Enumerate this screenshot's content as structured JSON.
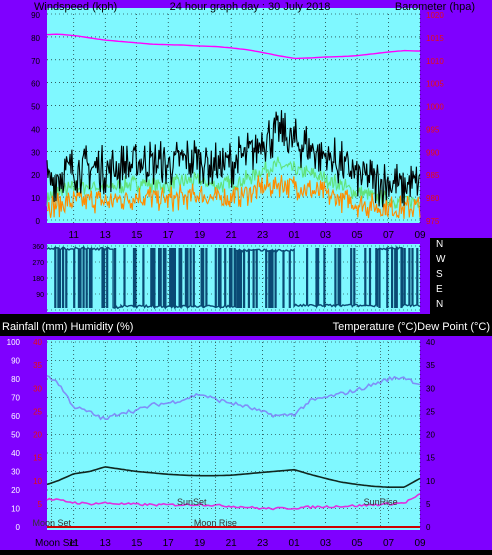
{
  "header": {
    "left": "Windspeed (kph)",
    "center": "24 hour graph day : 30 July 2018",
    "right": "Barometer (hpa)"
  },
  "mid_header": {
    "left": "Rainfall (mm)  Humidity (%)",
    "right": "Temperature (°C)Dew Point (°C)"
  },
  "colors": {
    "background": "#000000",
    "frame": "#7f00ff",
    "plot_bg": "#7ff8ff",
    "wind_speed": "#000000",
    "wind_gust_band": "#62e27a",
    "wind_avg": "#ff8c00",
    "barometer": "#ff00ff",
    "direction": "#0a4a74",
    "humidity": "#7f8ff8",
    "temperature": "#102820",
    "dew_point": "#e030e0",
    "rainfall": "#cc0000",
    "axis_red": "#e81010"
  },
  "chart_data": [
    {
      "type": "line",
      "title": "24 hour graph day : 30 July 2018",
      "ylabel": "Windspeed (kph)",
      "y2label": "Barometer (hpa)",
      "x_ticks": [
        "11",
        "13",
        "15",
        "17",
        "19",
        "21",
        "23",
        "01",
        "03",
        "05",
        "07",
        "09"
      ],
      "ylim": [
        0,
        90
      ],
      "y_ticks": [
        0,
        10,
        20,
        30,
        40,
        50,
        60,
        70,
        80,
        90
      ],
      "y2lim": [
        975,
        1020
      ],
      "y2_ticks": [
        975,
        980,
        985,
        990,
        995,
        1000,
        1005,
        1010,
        1015,
        1020
      ],
      "grid": true,
      "series": [
        {
          "key": "barometer",
          "axis": "y2",
          "x": [
            9.3,
            10,
            11,
            12,
            13,
            14,
            15,
            16,
            17,
            18,
            19,
            20,
            21,
            22,
            23,
            0,
            1,
            2,
            3,
            4,
            5,
            6,
            7,
            8,
            9
          ],
          "values": [
            1015.5,
            1015.6,
            1015.3,
            1014.8,
            1014.3,
            1014.0,
            1013.7,
            1013.4,
            1013.3,
            1013.2,
            1013.0,
            1012.9,
            1012.6,
            1012.2,
            1011.6,
            1010.9,
            1010.3,
            1010.4,
            1010.6,
            1010.7,
            1010.9,
            1011.3,
            1011.7,
            1012.0,
            1011.9
          ]
        },
        {
          "key": "wind_speed",
          "axis": "y",
          "noise": 11,
          "x": [
            9.3,
            10,
            11,
            12,
            13,
            14,
            15,
            16,
            17,
            18,
            19,
            20,
            21,
            22,
            23,
            0,
            1,
            2,
            3,
            4,
            5,
            6,
            7,
            8,
            9
          ],
          "values": [
            16,
            20,
            22,
            23,
            22,
            23,
            25,
            25,
            24,
            26,
            27,
            24,
            25,
            28,
            35,
            38,
            34,
            32,
            28,
            24,
            20,
            17,
            16,
            15,
            15
          ]
        },
        {
          "key": "wind_gust_band",
          "axis": "y",
          "noise": 4,
          "x": [
            9.3,
            10,
            11,
            12,
            13,
            14,
            15,
            16,
            17,
            18,
            19,
            20,
            21,
            22,
            23,
            0,
            1,
            2,
            3,
            4,
            5,
            6,
            7,
            8,
            9
          ],
          "values": [
            10,
            12,
            14,
            15,
            14,
            15,
            16,
            16,
            15,
            17,
            17,
            15,
            16,
            18,
            22,
            24,
            22,
            20,
            18,
            15,
            12,
            10,
            9,
            8,
            9
          ]
        },
        {
          "key": "wind_avg",
          "axis": "y",
          "noise": 6,
          "x": [
            9.3,
            10,
            11,
            12,
            13,
            14,
            15,
            16,
            17,
            18,
            19,
            20,
            21,
            22,
            23,
            0,
            1,
            2,
            3,
            4,
            5,
            6,
            7,
            8,
            9
          ],
          "values": [
            6,
            7,
            8,
            9,
            8,
            9,
            10,
            10,
            9,
            10,
            11,
            9,
            10,
            12,
            14,
            16,
            15,
            13,
            11,
            9,
            7,
            6,
            5,
            5,
            6
          ]
        }
      ]
    },
    {
      "type": "line",
      "title": "Wind direction",
      "ylabel": "",
      "y_ticks": [
        0,
        90,
        180,
        270,
        360
      ],
      "y_tick_labels": [
        "",
        "90",
        "180",
        "270",
        "360"
      ],
      "direction_labels": [
        "N",
        "W",
        "S",
        "E",
        "N"
      ],
      "ylim": [
        0,
        360
      ],
      "series": [
        {
          "key": "direction",
          "segments": [
            {
              "x0": 9.3,
              "x1": 13.5,
              "value": 345
            },
            {
              "x0": 13.5,
              "x1": 14.0,
              "value": 15
            },
            {
              "x0": 14.0,
              "x1": 21.3,
              "value": 20
            },
            {
              "x0": 21.3,
              "x1": 1.0,
              "value": 335
            },
            {
              "x0": 1.0,
              "x1": 6.3,
              "value": 25
            },
            {
              "x0": 6.3,
              "x1": 7.9,
              "value": 345
            },
            {
              "x0": 7.9,
              "x1": 9.0,
              "value": 25
            }
          ],
          "flips_per_hour": 3
        }
      ]
    },
    {
      "type": "line",
      "title": "Rainfall, Humidity, Temperature, Dew Point",
      "ylabel": "Rainfall (mm)  Humidity (%)",
      "y2label": "Temperature (°C)Dew Point (°C)",
      "x_ticks": [
        "11",
        "13",
        "15",
        "17",
        "19",
        "21",
        "23",
        "01",
        "03",
        "05",
        "07",
        "09"
      ],
      "x_label_first": "Moon Set",
      "ylim": [
        0,
        100
      ],
      "y_ticks": [
        0,
        10,
        20,
        30,
        40,
        50,
        60,
        70,
        80,
        90,
        100
      ],
      "rain_ylim": [
        0,
        40
      ],
      "rain_ticks": [
        5,
        10,
        15,
        20,
        25,
        30,
        35,
        40
      ],
      "y2lim": [
        0,
        40
      ],
      "y2_ticks": [
        0,
        5,
        10,
        15,
        20,
        25,
        30,
        35,
        40
      ],
      "annotations": [
        {
          "text": "Moon Set",
          "x": 9.6
        },
        {
          "text": "SunSet",
          "x": 18.5
        },
        {
          "text": "Moon Rise",
          "x": 20.0
        },
        {
          "text": "SunRise",
          "x": 6.5
        }
      ],
      "series": [
        {
          "key": "humidity",
          "axis": "y",
          "x": [
            9.3,
            10,
            11,
            12,
            13,
            14,
            15,
            16,
            17,
            18,
            19,
            20,
            21,
            22,
            23,
            0,
            1,
            2,
            3,
            4,
            5,
            6,
            7,
            8,
            9
          ],
          "values": [
            82,
            78,
            65,
            62,
            58,
            62,
            63,
            66,
            67,
            69,
            72,
            69,
            67,
            65,
            62,
            60,
            61,
            68,
            70,
            72,
            74,
            77,
            80,
            81,
            77
          ]
        },
        {
          "key": "temperature",
          "axis": "y2",
          "x": [
            9.3,
            10,
            11,
            12,
            13,
            14,
            15,
            16,
            17,
            18,
            19,
            20,
            21,
            22,
            23,
            0,
            1,
            2,
            3,
            4,
            5,
            6,
            7,
            8,
            9
          ],
          "values": [
            9.2,
            10,
            11.5,
            12,
            13,
            12.5,
            12,
            11.7,
            11.4,
            11.2,
            11.1,
            11.1,
            11.2,
            11.5,
            11.8,
            12.1,
            12.4,
            11.4,
            10.5,
            9.7,
            9.2,
            8.8,
            8.6,
            8.6,
            10.5
          ]
        },
        {
          "key": "dew_point",
          "axis": "y2",
          "x": [
            9.3,
            10,
            11,
            12,
            13,
            14,
            15,
            16,
            17,
            18,
            19,
            20,
            21,
            22,
            23,
            0,
            1,
            2,
            3,
            4,
            5,
            6,
            7,
            8,
            9
          ],
          "values": [
            6.0,
            5.8,
            5.3,
            5.0,
            5.2,
            5.0,
            4.9,
            4.8,
            4.8,
            4.8,
            4.9,
            4.7,
            4.5,
            4.3,
            4.0,
            4.0,
            4.1,
            4.3,
            4.4,
            4.5,
            4.6,
            4.8,
            5.0,
            5.2,
            7.0
          ]
        },
        {
          "key": "rainfall",
          "axis": "y",
          "x": [
            9.3,
            9
          ],
          "values": [
            0,
            0
          ]
        }
      ]
    }
  ]
}
